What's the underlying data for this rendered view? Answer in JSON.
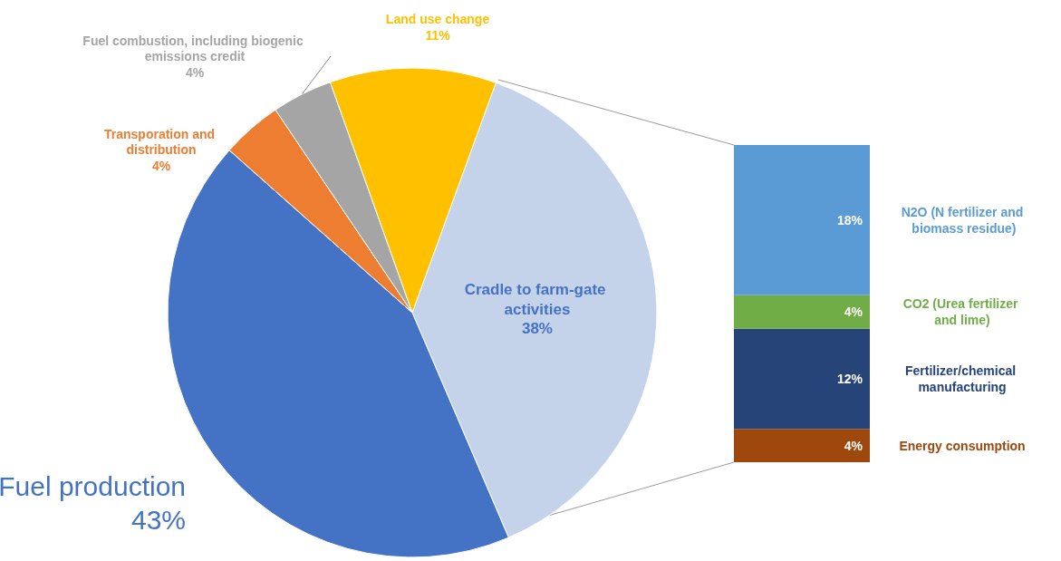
{
  "chart_data": [
    {
      "type": "pie",
      "categories": [
        "Cradle to farm-gate activities",
        "Fuel production",
        "Transporation and distribution",
        "Fuel combustion, including biogenic emissions credit",
        "Land use change"
      ],
      "values": [
        38,
        43,
        4,
        4,
        11
      ],
      "colors": [
        "#c5d3ea",
        "#4472c4",
        "#ed7d31",
        "#a5a5a5",
        "#ffc000"
      ],
      "value_labels": [
        "38%",
        "43%",
        "4%",
        "4%",
        "11%"
      ],
      "legend": false
    },
    {
      "type": "bar",
      "stacked": true,
      "categories": [
        null
      ],
      "legend": false,
      "series": [
        {
          "name": "Energy consumption",
          "color": "#9e480e",
          "values": [
            4
          ],
          "value_labels": [
            "4%"
          ]
        },
        {
          "name": "Fertilizer/chemical manufacturing",
          "color": "#264478",
          "values": [
            12
          ],
          "value_labels": [
            "12%"
          ]
        },
        {
          "name": "CO2 (Urea fertilizer and lime)",
          "color": "#70ad47",
          "values": [
            4
          ],
          "value_labels": [
            "4%"
          ]
        },
        {
          "name": "N2O (N fertilizer and biomass residue)",
          "color": "#5b9bd5",
          "values": [
            18
          ],
          "value_labels": [
            "18%"
          ]
        }
      ]
    }
  ]
}
